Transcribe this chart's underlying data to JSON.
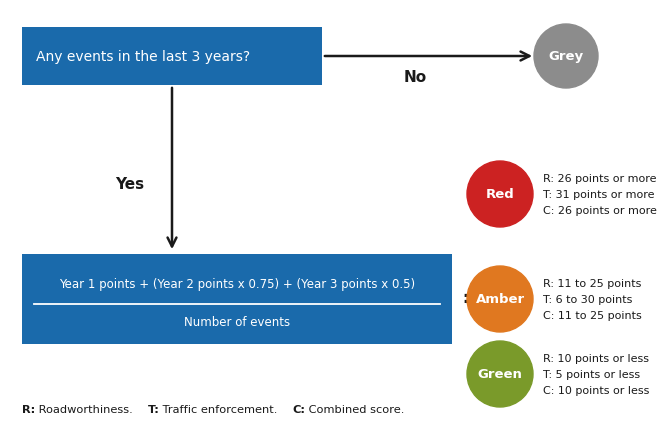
{
  "bg_color": "#ffffff",
  "box1_color": "#1a6aab",
  "box1_text": "Any events in the last 3 years?",
  "box2_color": "#1a6aab",
  "box2_numerator": "Year 1 points + (Year 2 points x 0.75) + (Year 3 points x 0.5)",
  "box2_denominator": "Number of events",
  "grey_color": "#8c8c8c",
  "red_color": "#cc2222",
  "amber_color": "#e07820",
  "green_color": "#7a9a2a",
  "grey_label": "Grey",
  "red_label": "Red",
  "amber_label": "Amber",
  "green_label": "Green",
  "red_text_lines": [
    "R: 26 points or more",
    "T: 31 points or more",
    "C: 26 points or more"
  ],
  "amber_text_lines": [
    "R: 11 to 25 points",
    "T: 6 to 30 points",
    "C: 11 to 25 points"
  ],
  "green_text_lines": [
    "R: 10 points or less",
    "T: 5 points or less",
    "C: 10 points or less"
  ],
  "no_label": "No",
  "yes_label": "Yes",
  "equals_sign": "=",
  "footer_bold": [
    "R:",
    "T:",
    "C:"
  ],
  "footer_text": "R: Roadworthiness.    T: Traffic enforcement.    C: Combined score.",
  "text_white": "#ffffff",
  "text_dark": "#1a1a1a",
  "arrow_color": "#1a1a1a"
}
